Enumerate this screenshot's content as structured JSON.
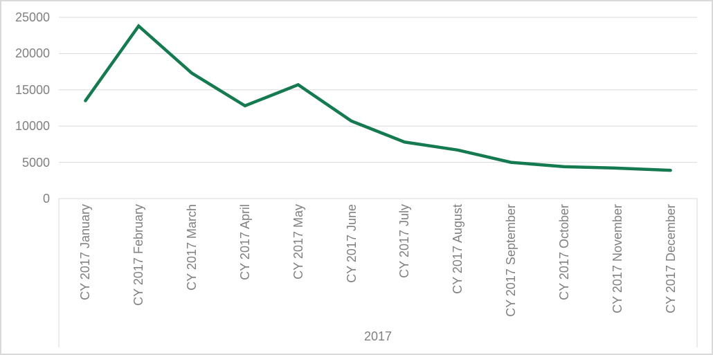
{
  "chart_data": {
    "type": "line",
    "title": "",
    "categories": [
      "CY 2017 January",
      "CY 2017 February",
      "CY 2017 March",
      "CY 2017 April",
      "CY 2017 May",
      "CY 2017 June",
      "CY 2017 July",
      "CY 2017 August",
      "CY 2017 September",
      "CY 2017 October",
      "CY 2017 November",
      "CY 2017 December"
    ],
    "series": [
      {
        "name": "",
        "values": [
          13500,
          23800,
          17300,
          12800,
          15700,
          10700,
          7800,
          6700,
          5000,
          4400,
          4200,
          3900
        ]
      }
    ],
    "xlabel": "2017",
    "ylabel": "",
    "ylim": [
      0,
      25000
    ],
    "y_ticks": [
      0,
      5000,
      10000,
      15000,
      20000,
      25000
    ],
    "grid": "horizontal",
    "legend": "none",
    "x_tick_rotation": -90
  },
  "style": {
    "series_color": "#157a50",
    "series_stroke_width": 4.5,
    "gridline_color": "#d9d9d9",
    "axis_line_color": "#d9d9d9",
    "tick_label_color": "#808080",
    "frame_border_color": "#d9d9d9",
    "background_color": "#ffffff"
  }
}
